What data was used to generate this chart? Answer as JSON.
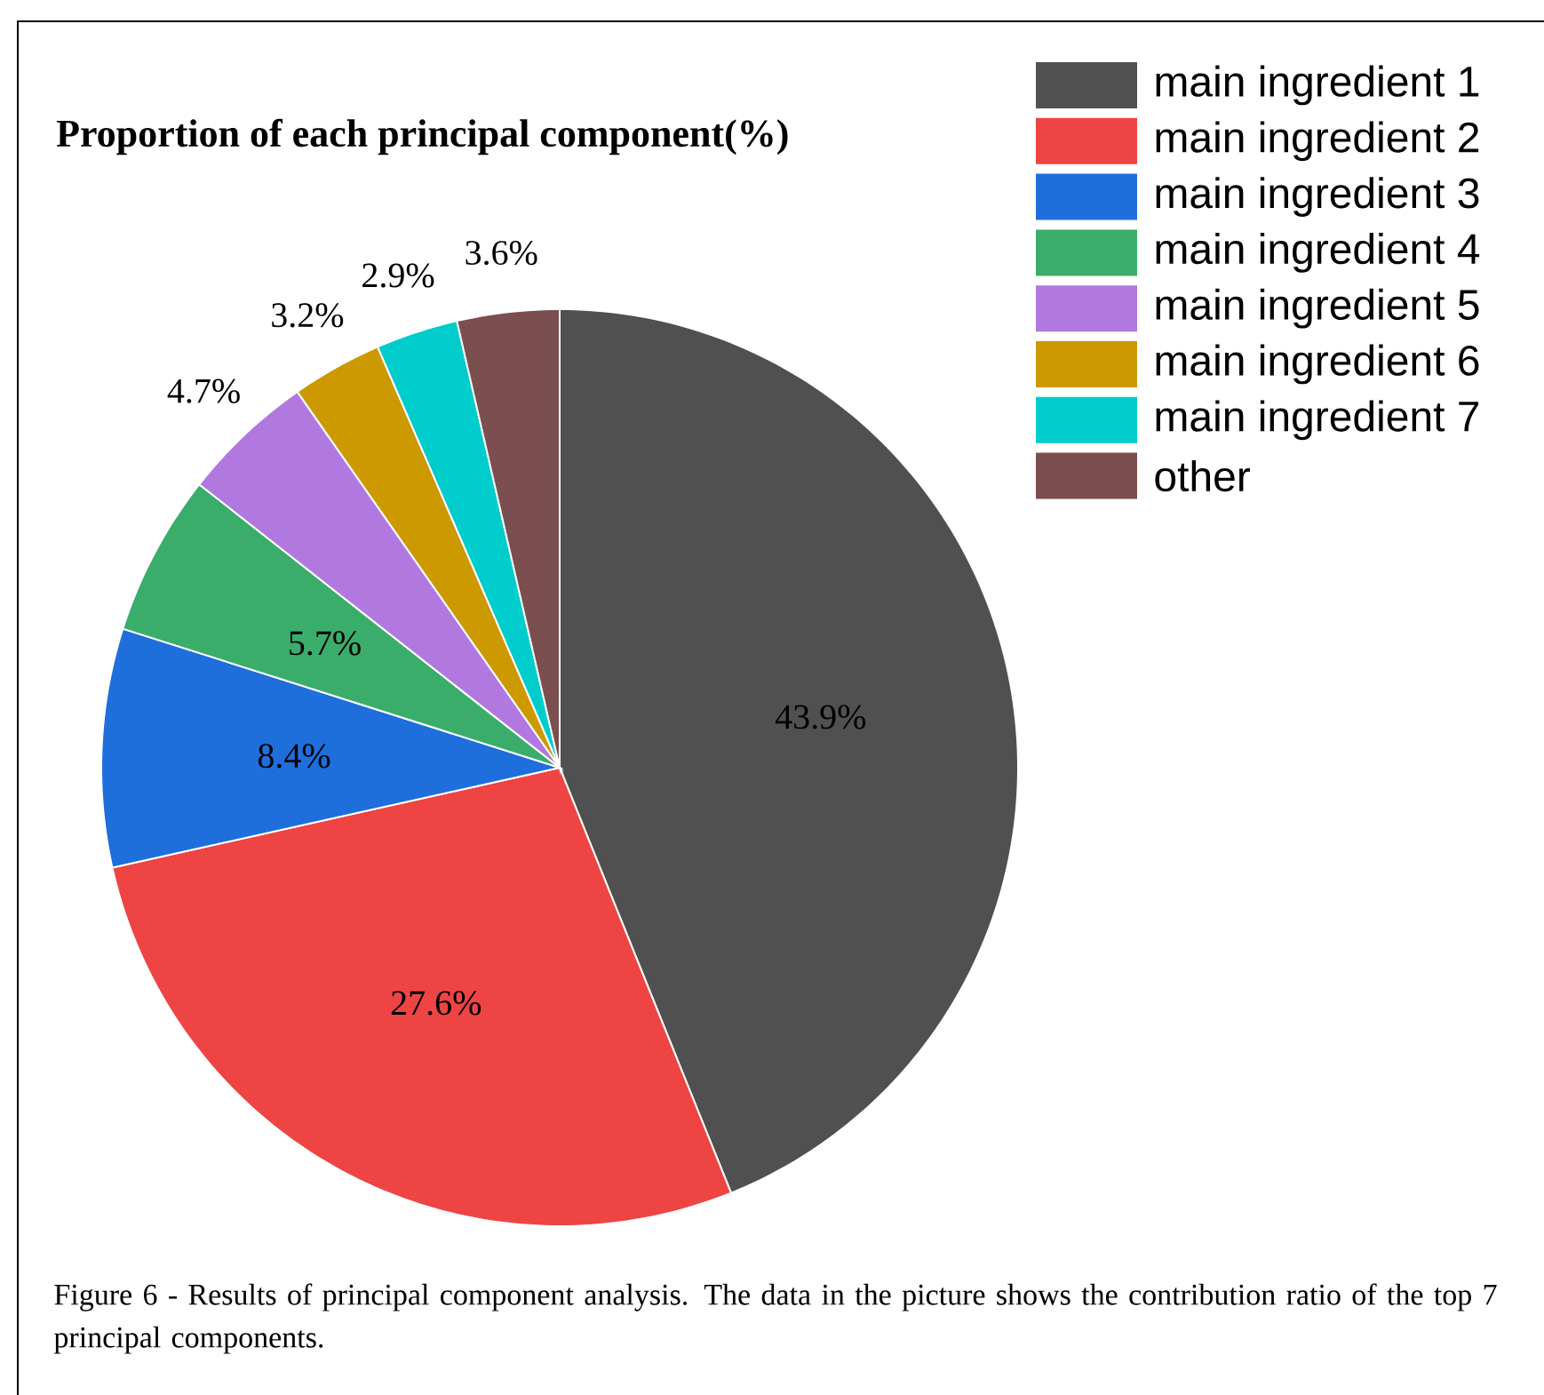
{
  "chart_data": {
    "type": "pie",
    "title": "Proportion of each principal component(%)",
    "categories": [
      "main ingredient 1",
      "main ingredient 2",
      "main ingredient 3",
      "main ingredient 4",
      "main ingredient 5",
      "main ingredient 6",
      "main ingredient 7",
      "other"
    ],
    "values": [
      43.9,
      27.6,
      8.4,
      5.7,
      4.7,
      3.2,
      2.9,
      3.6
    ],
    "value_labels": [
      "43.9%",
      "27.6%",
      "8.4%",
      "5.7%",
      "4.7%",
      "3.2%",
      "2.9%",
      "3.6%"
    ],
    "colors": [
      "#505050",
      "#ef4444",
      "#1e6fdc",
      "#3aad6a",
      "#b179e0",
      "#cc9900",
      "#00cccc",
      "#7b4f4f"
    ],
    "legend": "top right",
    "annotations": [
      "Figure 6 - Results of principal component analysis. The data in the picture shows the contribution ratio of the top 7 principal components."
    ]
  }
}
